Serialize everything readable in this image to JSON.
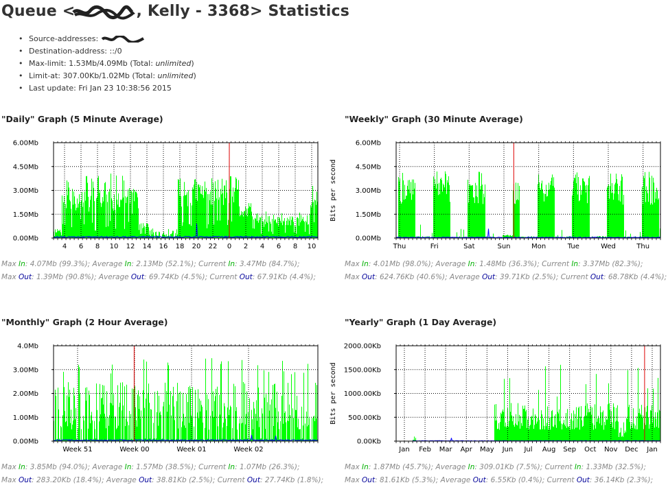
{
  "page": {
    "title_prefix": "Queue <",
    "title_suffix": ", Kelly - 3368> Statistics",
    "info": {
      "source_label": "Source-addresses:",
      "dest": "Destination-address: ::/0",
      "maxlimit_prefix": "Max-limit: 1.53Mb/4.09Mb (Total: ",
      "limitat_prefix": "Limit-at: 307.00Kb/1.02Mb (Total: ",
      "unlimited": "unlimited",
      "close": ")",
      "last_update": "Last update: Fri Jan 23 10:38:56 2015"
    }
  },
  "chart_data": [
    {
      "id": "daily",
      "type": "area",
      "title": "\"Daily\" Graph (5 Minute Average)",
      "ylabel": "",
      "yticks": [
        "0.00Mb",
        "1.50Mb",
        "3.00Mb",
        "4.50Mb",
        "6.00Mb"
      ],
      "ylim": [
        0,
        6.0
      ],
      "unit": "Mb",
      "xtick_labels": [
        "4",
        "6",
        "8",
        "10",
        "12",
        "14",
        "16",
        "18",
        "20",
        "22",
        "0",
        "2",
        "4",
        "6",
        "8",
        "10"
      ],
      "now_marker_fraction": 0.665,
      "series": [
        {
          "name": "In",
          "color": "#00ff00",
          "max": 4.07,
          "average": 2.13,
          "current": 3.47
        },
        {
          "name": "Out",
          "color": "#0000ff",
          "max": 1.39,
          "average": 0.0697,
          "current": 0.0679
        }
      ],
      "stats_in": [
        "Max ",
        "In",
        ": 4.07Mb (99.3%); Average ",
        "In",
        ": 2.13Mb (52.1%); Current ",
        "In",
        ": 3.47Mb (84.7%);"
      ],
      "stats_out": [
        "Max ",
        "Out",
        ": 1.39Mb (90.8%); Average ",
        "Out",
        ": 69.74Kb (4.5%); Current ",
        "Out",
        ": 67.91Kb (4.4%);"
      ]
    },
    {
      "id": "weekly",
      "type": "area",
      "title": "\"Weekly\" Graph (30 Minute Average)",
      "ylabel": "Bits per second",
      "yticks": [
        "0.00Mb",
        "1.50Mb",
        "3.00Mb",
        "4.50Mb",
        "6.00Mb"
      ],
      "ylim": [
        0,
        6.0
      ],
      "unit": "Mb",
      "xtick_labels": [
        "Thu",
        "Fri",
        "Sat",
        "Sun",
        "Mon",
        "Tue",
        "Wed",
        "Thu"
      ],
      "now_marker_fraction": 0.445,
      "series": [
        {
          "name": "In",
          "color": "#00ff00",
          "max": 4.01,
          "average": 1.48,
          "current": 3.37
        },
        {
          "name": "Out",
          "color": "#0000ff",
          "max": 0.625,
          "average": 0.0397,
          "current": 0.0688
        }
      ],
      "stats_in": [
        "Max ",
        "In",
        ": 4.01Mb (98.0%); Average ",
        "In",
        ": 1.48Mb (36.3%); Current ",
        "In",
        ": 3.37Mb (82.3%);"
      ],
      "stats_out": [
        "Max ",
        "Out",
        ": 624.76Kb (40.6%); Average ",
        "Out",
        ": 39.71Kb (2.5%); Current ",
        "Out",
        ": 68.78Kb (4.4%);"
      ]
    },
    {
      "id": "monthly",
      "type": "area",
      "title": "\"Monthly\" Graph (2 Hour Average)",
      "ylabel": "",
      "yticks": [
        "0.00Mb",
        "1.00Mb",
        "2.00Mb",
        "3.00Mb",
        "4.0Mb"
      ],
      "ylim": [
        0,
        4.0
      ],
      "unit": "Mb",
      "xtick_labels": [
        "Week 51",
        "Week 00",
        "Week 01",
        "Week 02"
      ],
      "now_marker_fraction": 0.305,
      "series": [
        {
          "name": "In",
          "color": "#00ff00",
          "max": 3.85,
          "average": 1.57,
          "current": 1.07
        },
        {
          "name": "Out",
          "color": "#0000ff",
          "max": 0.283,
          "average": 0.0388,
          "current": 0.0277
        }
      ],
      "stats_in": [
        "Max ",
        "In",
        ": 3.85Mb (94.0%); Average ",
        "In",
        ": 1.57Mb (38.5%); Current ",
        "In",
        ": 1.07Mb (26.3%);"
      ],
      "stats_out": [
        "Max ",
        "Out",
        ": 283.20Kb (18.4%); Average ",
        "Out",
        ": 38.81Kb (2.5%); Current ",
        "Out",
        ": 27.74Kb (1.8%);"
      ]
    },
    {
      "id": "yearly",
      "type": "area",
      "title": "\"Yearly\" Graph (1 Day Average)",
      "ylabel": "Bits per second",
      "yticks": [
        "0.00Kb",
        "500.00Kb",
        "1000.00Kb",
        "1500.00Kb",
        "2000.00Kb"
      ],
      "ylim": [
        0,
        2000
      ],
      "unit": "Kb",
      "xtick_labels": [
        "Jan",
        "Feb",
        "Mar",
        "Apr",
        "May",
        "Jun",
        "Jul",
        "Aug",
        "Sep",
        "Oct",
        "Nov",
        "Dec",
        "Jan"
      ],
      "now_marker_fraction": 0.94,
      "series": [
        {
          "name": "In",
          "color": "#00ff00",
          "max": 1870,
          "average": 309.01,
          "current": 1330
        },
        {
          "name": "Out",
          "color": "#0000ff",
          "max": 81.61,
          "average": 6.55,
          "current": 36.14
        }
      ],
      "stats_in": [
        "Max ",
        "In",
        ": 1.87Mb (45.7%); Average ",
        "In",
        ": 309.01Kb (7.5%); Current ",
        "In",
        ": 1.33Mb (32.5%);"
      ],
      "stats_out": [
        "Max ",
        "Out",
        ": 81.61Kb (5.3%); Average ",
        "Out",
        ": 6.55Kb (0.4%); Current ",
        "Out",
        ": 36.14Kb (2.3%);"
      ]
    }
  ]
}
